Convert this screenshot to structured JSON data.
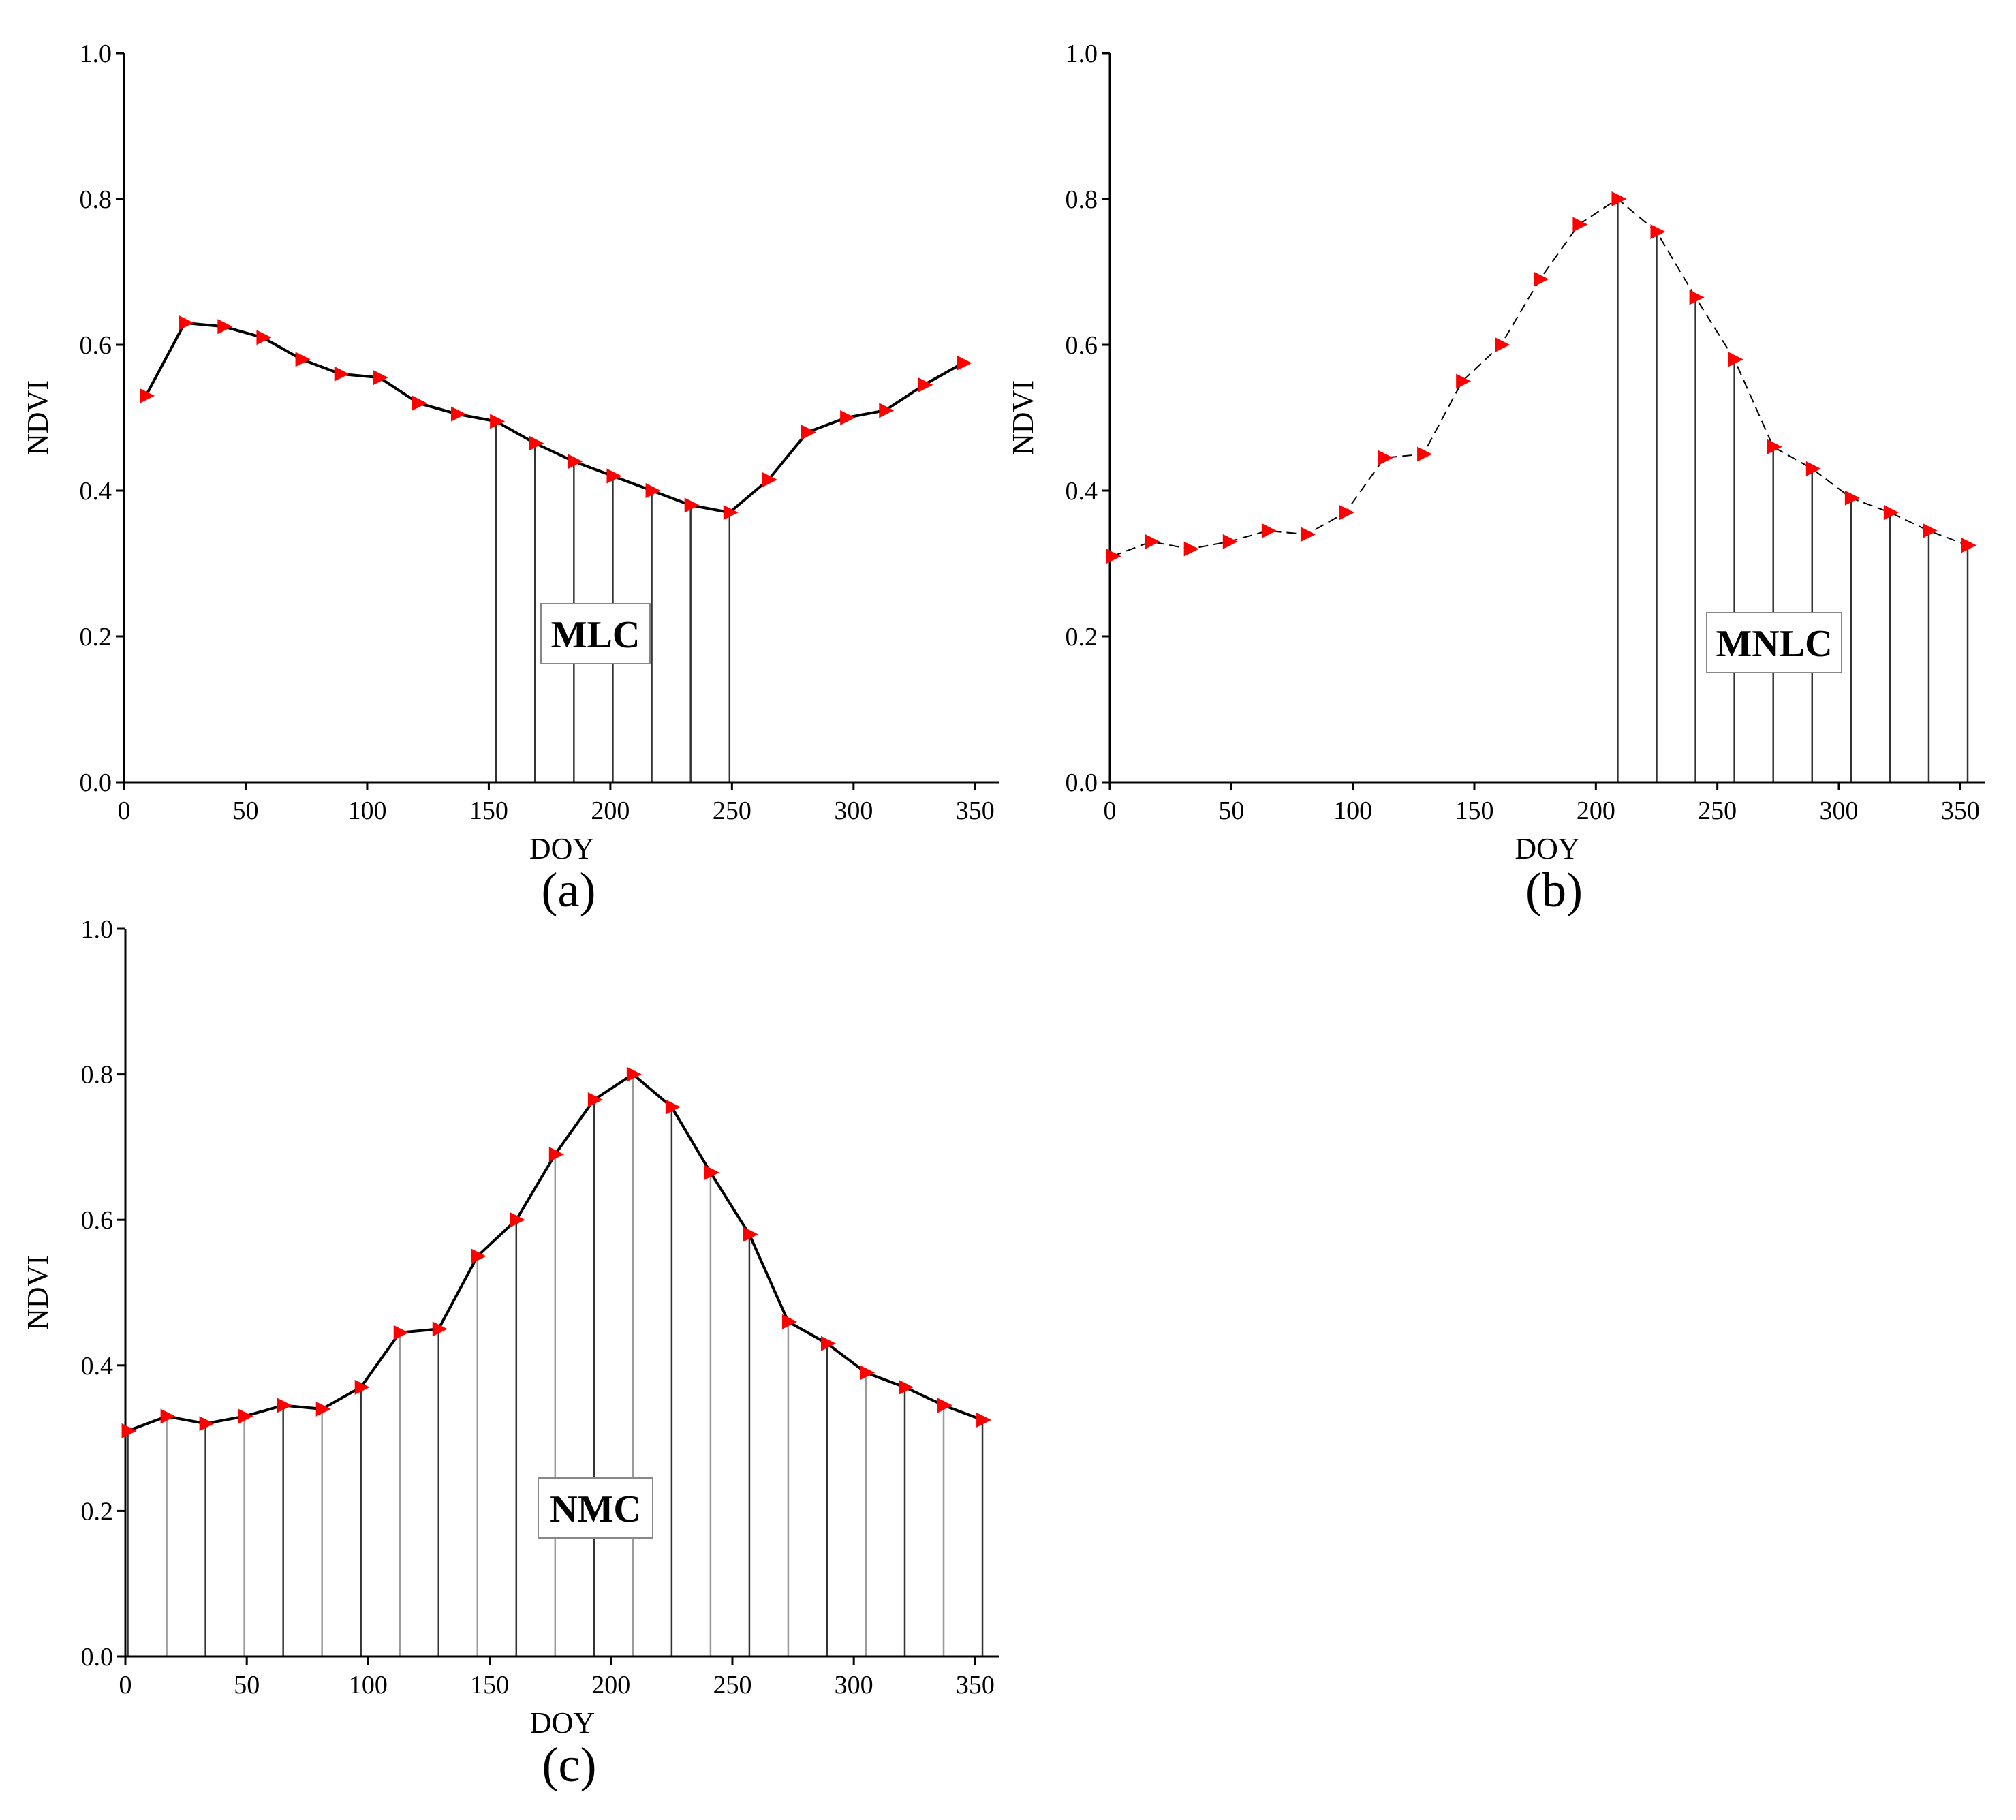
{
  "chart_data": [
    {
      "type": "line",
      "panel": "(a)",
      "box_label": "MLC",
      "xlabel": "DOY",
      "ylabel": "NDVI",
      "xlim": [
        0,
        360
      ],
      "ylim": [
        0.0,
        1.0
      ],
      "xticks": [
        0,
        50,
        100,
        150,
        200,
        250,
        300,
        350
      ],
      "yticks": [
        "0.0",
        "0.2",
        "0.4",
        "0.6",
        "0.8",
        "1.0"
      ],
      "line_style": "solid",
      "marker": "red right-pointing triangle",
      "x": [
        9,
        25,
        41,
        57,
        73,
        89,
        105,
        121,
        137,
        153,
        169,
        185,
        201,
        217,
        233,
        249,
        265,
        281,
        297,
        313,
        329,
        345
      ],
      "y": [
        0.53,
        0.63,
        0.625,
        0.61,
        0.58,
        0.56,
        0.555,
        0.52,
        0.505,
        0.495,
        0.465,
        0.44,
        0.42,
        0.4,
        0.38,
        0.37,
        0.415,
        0.48,
        0.5,
        0.51,
        0.545,
        0.575
      ],
      "shaded_x": [
        153,
        169,
        185,
        201,
        217,
        233,
        249
      ]
    },
    {
      "type": "line",
      "panel": "(b)",
      "box_label": "MNLC",
      "xlabel": "DOY",
      "ylabel": "NDVI",
      "xlim": [
        0,
        360
      ],
      "ylim": [
        0.0,
        1.0
      ],
      "xticks": [
        0,
        50,
        100,
        150,
        200,
        250,
        300,
        350
      ],
      "yticks": [
        "0.0",
        "0.2",
        "0.4",
        "0.6",
        "0.8",
        "1.0"
      ],
      "line_style": "dashed",
      "marker": "red right-pointing triangle",
      "x": [
        1,
        17,
        33,
        49,
        65,
        81,
        97,
        113,
        129,
        145,
        161,
        177,
        193,
        209,
        225,
        241,
        257,
        273,
        289,
        305,
        321,
        337,
        353
      ],
      "y": [
        0.31,
        0.33,
        0.32,
        0.33,
        0.345,
        0.34,
        0.37,
        0.445,
        0.45,
        0.55,
        0.6,
        0.69,
        0.765,
        0.8,
        0.755,
        0.665,
        0.58,
        0.46,
        0.43,
        0.39,
        0.37,
        0.345,
        0.325
      ],
      "shaded_x": [
        209,
        225,
        241,
        257,
        273,
        289,
        305,
        321,
        337,
        353
      ]
    },
    {
      "type": "line",
      "panel": "(c)",
      "box_label": "NMC",
      "xlabel": "DOY",
      "ylabel": "NDVI",
      "xlim": [
        0,
        360
      ],
      "ylim": [
        0.0,
        1.0
      ],
      "xticks": [
        0,
        50,
        100,
        150,
        200,
        250,
        300,
        350
      ],
      "yticks": [
        "0.0",
        "0.2",
        "0.4",
        "0.6",
        "0.8",
        "1.0"
      ],
      "line_style": "solid",
      "marker": "red right-pointing triangle",
      "x": [
        1,
        17,
        33,
        49,
        65,
        81,
        97,
        113,
        129,
        145,
        161,
        177,
        193,
        209,
        225,
        241,
        257,
        273,
        289,
        305,
        321,
        337,
        353
      ],
      "y": [
        0.31,
        0.33,
        0.32,
        0.33,
        0.345,
        0.34,
        0.37,
        0.445,
        0.45,
        0.55,
        0.6,
        0.69,
        0.765,
        0.8,
        0.755,
        0.665,
        0.58,
        0.46,
        0.43,
        0.39,
        0.37,
        0.345,
        0.325
      ],
      "shaded_x": [
        1,
        17,
        33,
        49,
        65,
        81,
        97,
        113,
        129,
        145,
        161,
        177,
        193,
        209,
        225,
        241,
        257,
        273,
        289,
        305,
        321,
        337,
        353
      ]
    }
  ],
  "colors": {
    "marker": "#ff0000",
    "line": "#000000",
    "drop_line_dark": "#333333",
    "drop_line_light": "#9a9a9a",
    "axis": "#000000"
  }
}
